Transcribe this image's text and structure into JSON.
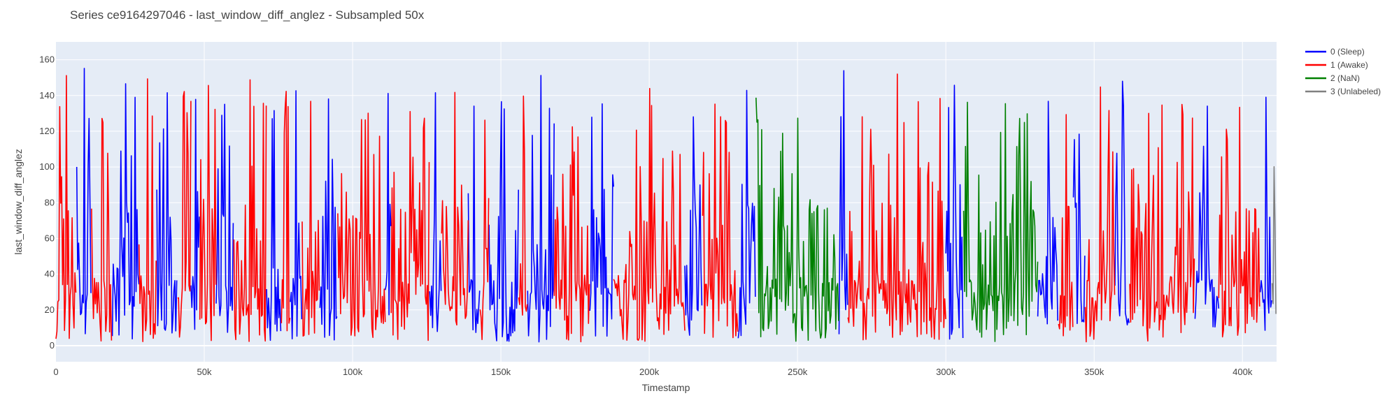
{
  "chart_data": {
    "type": "line",
    "title": "Series ce9164297046 - last_window_diff_anglez - Subsampled 50x",
    "xlabel": "Timestamp",
    "ylabel": "last_window_diff_anglez",
    "xlim": [
      0,
      411500
    ],
    "ylim": [
      -9,
      170
    ],
    "x_ticks": [
      0,
      50000,
      100000,
      150000,
      200000,
      250000,
      300000,
      350000,
      400000
    ],
    "x_tick_labels": [
      "0",
      "50k",
      "100k",
      "150k",
      "200k",
      "250k",
      "300k",
      "350k",
      "400k"
    ],
    "y_ticks": [
      0,
      20,
      40,
      60,
      80,
      100,
      120,
      140,
      160
    ],
    "y_tick_labels": [
      "0",
      "20",
      "40",
      "60",
      "80",
      "100",
      "120",
      "140",
      "160"
    ],
    "grid": true,
    "legend_position": "top-right",
    "series": [
      {
        "name": "0 (Sleep)",
        "color": "#0000ff",
        "segments": [
          [
            7000,
            12000
          ],
          [
            19000,
            28000
          ],
          [
            34000,
            41000
          ],
          [
            45500,
            48500
          ],
          [
            54000,
            60000
          ],
          [
            71000,
            76000
          ],
          [
            79000,
            83000
          ],
          [
            89000,
            95000
          ],
          [
            111000,
            113000
          ],
          [
            126000,
            130000
          ],
          [
            139000,
            143000
          ],
          [
            146000,
            156000
          ],
          [
            159000,
            168000
          ],
          [
            180000,
            188000
          ],
          [
            212000,
            218000
          ],
          [
            230000,
            236000
          ],
          [
            264000,
            267000
          ],
          [
            300000,
            306000
          ],
          [
            331000,
            338000
          ],
          [
            343000,
            347000
          ],
          [
            357000,
            362000
          ],
          [
            384000,
            392000
          ],
          [
            406000,
            410000
          ]
        ],
        "peaks": [
          160,
          148,
          145,
          143
        ]
      },
      {
        "name": "1 (Awake)",
        "color": "#ff0000",
        "segments": [
          [
            0,
            7000
          ],
          [
            12000,
            19000
          ],
          [
            28000,
            34000
          ],
          [
            41000,
            45500
          ],
          [
            48500,
            54000
          ],
          [
            60000,
            71000
          ],
          [
            76000,
            79000
          ],
          [
            83000,
            89000
          ],
          [
            95000,
            111000
          ],
          [
            113000,
            126000
          ],
          [
            130000,
            139000
          ],
          [
            143000,
            146000
          ],
          [
            156000,
            159000
          ],
          [
            168000,
            180000
          ],
          [
            188000,
            212000
          ],
          [
            218000,
            230000
          ],
          [
            267000,
            300000
          ],
          [
            338000,
            343000
          ],
          [
            347000,
            357000
          ],
          [
            362000,
            384000
          ],
          [
            392000,
            406000
          ]
        ],
        "peaks": [
          153,
          149,
          151,
          150
        ]
      },
      {
        "name": "2 (NaN)",
        "color": "#008000",
        "segments": [
          [
            236000,
            264000
          ],
          [
            306000,
            331000
          ]
        ],
        "peaks": [
          155,
          141,
          136
        ]
      },
      {
        "name": "3 (Unlabeled)",
        "color": "#808080",
        "segments": [
          [
            410000,
            411500
          ]
        ],
        "peaks": [
          108
        ]
      }
    ]
  }
}
